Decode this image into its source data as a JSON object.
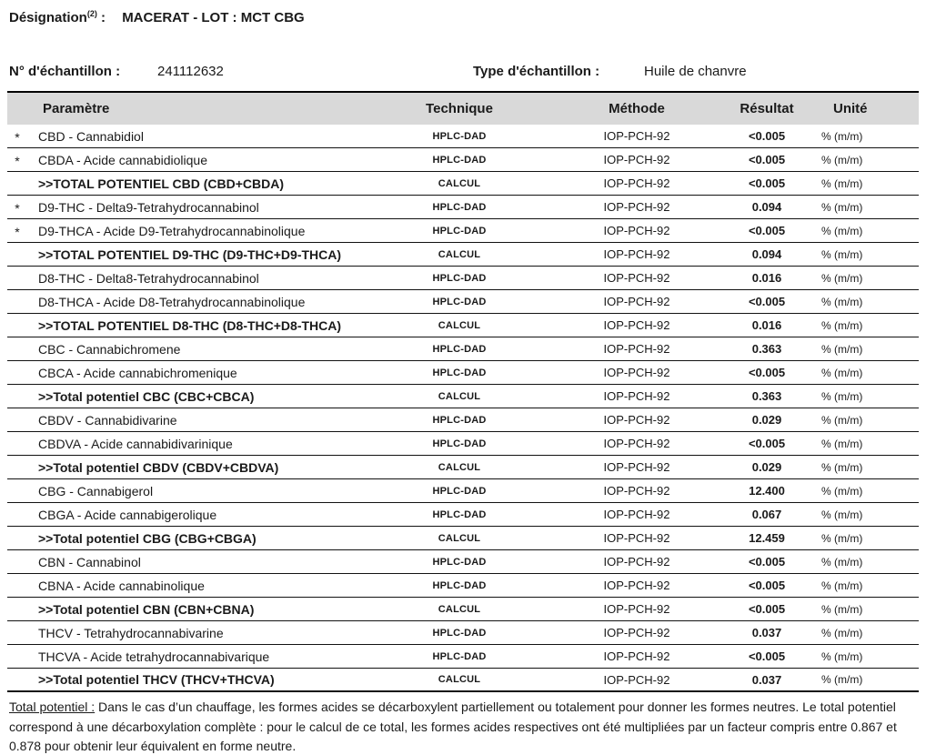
{
  "page": {
    "designation_label": "Désignation",
    "designation_sup": "(2)",
    "designation_colon": ":",
    "designation_value": "MACERAT - LOT : MCT CBG",
    "sample_number_label": "N° d'échantillon :",
    "sample_number_value": "241112632",
    "sample_type_label": "Type d'échantillon :",
    "sample_type_value": "Huile de chanvre"
  },
  "table": {
    "star_glyph": "*",
    "columns": {
      "param": "Paramètre",
      "technique": "Technique",
      "method": "Méthode",
      "result": "Résultat",
      "unit": "Unité"
    },
    "rows": [
      {
        "star": true,
        "total": false,
        "param": "CBD - Cannabidiol",
        "technique": "HPLC-DAD",
        "method": "IOP-PCH-92",
        "result": "<0.005",
        "unit": "% (m/m)"
      },
      {
        "star": true,
        "total": false,
        "param": "CBDA - Acide cannabidiolique",
        "technique": "HPLC-DAD",
        "method": "IOP-PCH-92",
        "result": "<0.005",
        "unit": "% (m/m)"
      },
      {
        "star": false,
        "total": true,
        "param": ">>TOTAL POTENTIEL CBD (CBD+CBDA)",
        "technique": "CALCUL",
        "method": "IOP-PCH-92",
        "result": "<0.005",
        "unit": "% (m/m)"
      },
      {
        "star": true,
        "total": false,
        "param": "D9-THC - Delta9-Tetrahydrocannabinol",
        "technique": "HPLC-DAD",
        "method": "IOP-PCH-92",
        "result": "0.094",
        "unit": "% (m/m)"
      },
      {
        "star": true,
        "total": false,
        "param": "D9-THCA - Acide D9-Tetrahydrocannabinolique",
        "technique": "HPLC-DAD",
        "method": "IOP-PCH-92",
        "result": "<0.005",
        "unit": "% (m/m)"
      },
      {
        "star": false,
        "total": true,
        "param": ">>TOTAL POTENTIEL D9-THC (D9-THC+D9-THCA)",
        "technique": "CALCUL",
        "method": "IOP-PCH-92",
        "result": "0.094",
        "unit": "% (m/m)"
      },
      {
        "star": false,
        "total": false,
        "param": "D8-THC - Delta8-Tetrahydrocannabinol",
        "technique": "HPLC-DAD",
        "method": "IOP-PCH-92",
        "result": "0.016",
        "unit": "% (m/m)"
      },
      {
        "star": false,
        "total": false,
        "param": "D8-THCA - Acide D8-Tetrahydrocannabinolique",
        "technique": "HPLC-DAD",
        "method": "IOP-PCH-92",
        "result": "<0.005",
        "unit": "% (m/m)"
      },
      {
        "star": false,
        "total": true,
        "param": ">>TOTAL POTENTIEL D8-THC (D8-THC+D8-THCA)",
        "technique": "CALCUL",
        "method": "IOP-PCH-92",
        "result": "0.016",
        "unit": "% (m/m)"
      },
      {
        "star": false,
        "total": false,
        "param": "CBC - Cannabichromene",
        "technique": "HPLC-DAD",
        "method": "IOP-PCH-92",
        "result": "0.363",
        "unit": "% (m/m)"
      },
      {
        "star": false,
        "total": false,
        "param": "CBCA - Acide cannabichromenique",
        "technique": "HPLC-DAD",
        "method": "IOP-PCH-92",
        "result": "<0.005",
        "unit": "% (m/m)"
      },
      {
        "star": false,
        "total": true,
        "param": ">>Total potentiel CBC (CBC+CBCA)",
        "technique": "CALCUL",
        "method": "IOP-PCH-92",
        "result": "0.363",
        "unit": "% (m/m)"
      },
      {
        "star": false,
        "total": false,
        "param": "CBDV - Cannabidivarine",
        "technique": "HPLC-DAD",
        "method": "IOP-PCH-92",
        "result": "0.029",
        "unit": "% (m/m)"
      },
      {
        "star": false,
        "total": false,
        "param": "CBDVA - Acide cannabidivarinique",
        "technique": "HPLC-DAD",
        "method": "IOP-PCH-92",
        "result": "<0.005",
        "unit": "% (m/m)"
      },
      {
        "star": false,
        "total": true,
        "param": ">>Total potentiel CBDV (CBDV+CBDVA)",
        "technique": "CALCUL",
        "method": "IOP-PCH-92",
        "result": "0.029",
        "unit": "% (m/m)"
      },
      {
        "star": false,
        "total": false,
        "param": "CBG - Cannabigerol",
        "technique": "HPLC-DAD",
        "method": "IOP-PCH-92",
        "result": "12.400",
        "unit": "% (m/m)"
      },
      {
        "star": false,
        "total": false,
        "param": "CBGA - Acide cannabigerolique",
        "technique": "HPLC-DAD",
        "method": "IOP-PCH-92",
        "result": "0.067",
        "unit": "% (m/m)"
      },
      {
        "star": false,
        "total": true,
        "param": ">>Total potentiel CBG (CBG+CBGA)",
        "technique": "CALCUL",
        "method": "IOP-PCH-92",
        "result": "12.459",
        "unit": "% (m/m)"
      },
      {
        "star": false,
        "total": false,
        "param": "CBN - Cannabinol",
        "technique": "HPLC-DAD",
        "method": "IOP-PCH-92",
        "result": "<0.005",
        "unit": "% (m/m)"
      },
      {
        "star": false,
        "total": false,
        "param": "CBNA - Acide cannabinolique",
        "technique": "HPLC-DAD",
        "method": "IOP-PCH-92",
        "result": "<0.005",
        "unit": "% (m/m)"
      },
      {
        "star": false,
        "total": true,
        "param": ">>Total potentiel CBN (CBN+CBNA)",
        "technique": "CALCUL",
        "method": "IOP-PCH-92",
        "result": "<0.005",
        "unit": "% (m/m)"
      },
      {
        "star": false,
        "total": false,
        "param": "THCV - Tetrahydrocannabivarine",
        "technique": "HPLC-DAD",
        "method": "IOP-PCH-92",
        "result": "0.037",
        "unit": "% (m/m)"
      },
      {
        "star": false,
        "total": false,
        "param": "THCVA - Acide tetrahydrocannabivarique",
        "technique": "HPLC-DAD",
        "method": "IOP-PCH-92",
        "result": "<0.005",
        "unit": "% (m/m)"
      },
      {
        "star": false,
        "total": true,
        "param": ">>Total potentiel THCV (THCV+THCVA)",
        "technique": "CALCUL",
        "method": "IOP-PCH-92",
        "result": "0.037",
        "unit": "% (m/m)"
      }
    ]
  },
  "footnote": {
    "lead": "Total potentiel :",
    "body": " Dans le cas d’un chauffage, les formes acides se décarboxylent partiellement ou totalement pour donner les formes neutres. Le total potentiel correspond à une décarboxylation complète : pour le calcul de ce total, les formes acides respectives ont été multipliées par un facteur compris entre 0.867 et 0.878 pour obtenir leur équivalent en forme neutre."
  },
  "colors": {
    "header_bg": "#d9d9d9",
    "text": "#1a1a1a",
    "line": "#000000"
  }
}
